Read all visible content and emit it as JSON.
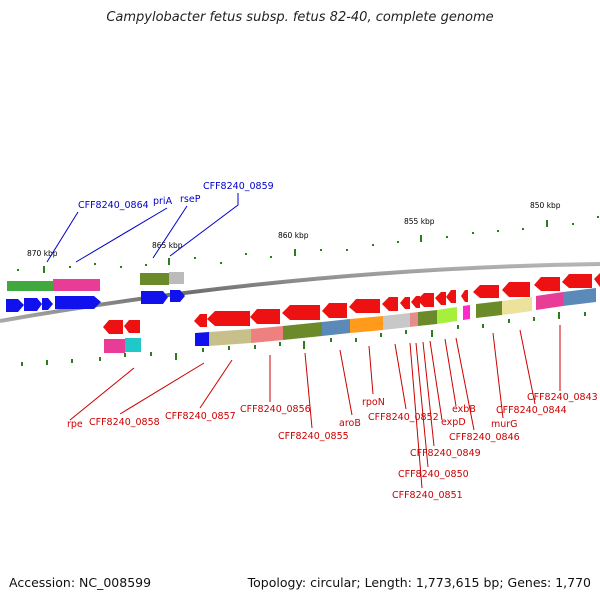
{
  "title": "Campylobacter fetus subsp. fetus 82-40, complete genome",
  "footer": {
    "accession": "Accession: NC_008599",
    "summary": "Topology: circular; Length: 1,773,615 bp; Genes: 1,770"
  },
  "colors": {
    "label_blue": "#0000cc",
    "label_red": "#cc0000",
    "tick_green": "#2d7d1f",
    "backbone": "#7f7f7f"
  },
  "scale_labels": [
    {
      "id": "870",
      "text": "870 kbp"
    },
    {
      "id": "865",
      "text": "865 kbp"
    },
    {
      "id": "860",
      "text": "860 kbp"
    },
    {
      "id": "855",
      "text": "855 kbp"
    },
    {
      "id": "850",
      "text": "850 kbp"
    }
  ],
  "gene_labels_top": [
    {
      "id": "CFF8240_0864",
      "text": "CFF8240_0864"
    },
    {
      "id": "priA",
      "text": "priA"
    },
    {
      "id": "rseP",
      "text": "rseP"
    },
    {
      "id": "CFF8240_0859",
      "text": "CFF8240_0859"
    }
  ],
  "gene_labels_bottom": [
    {
      "id": "rpe",
      "text": "rpe"
    },
    {
      "id": "CFF8240_0858",
      "text": "CFF8240_0858"
    },
    {
      "id": "CFF8240_0857",
      "text": "CFF8240_0857"
    },
    {
      "id": "CFF8240_0856",
      "text": "CFF8240_0856"
    },
    {
      "id": "CFF8240_0855",
      "text": "CFF8240_0855"
    },
    {
      "id": "aroB",
      "text": "aroB"
    },
    {
      "id": "rpoN",
      "text": "rpoN"
    },
    {
      "id": "CFF8240_0852",
      "text": "CFF8240_0852"
    },
    {
      "id": "CFF8240_0851",
      "text": "CFF8240_0851"
    },
    {
      "id": "CFF8240_0850",
      "text": "CFF8240_0850"
    },
    {
      "id": "CFF8240_0849",
      "text": "CFF8240_0849"
    },
    {
      "id": "expD",
      "text": "expD"
    },
    {
      "id": "exbB",
      "text": "exbB"
    },
    {
      "id": "CFF8240_0846",
      "text": "CFF8240_0846"
    },
    {
      "id": "murG",
      "text": "murG"
    },
    {
      "id": "CFF8240_0844",
      "text": "CFF8240_0844"
    },
    {
      "id": "CFF8240_0843",
      "text": "CFF8240_0843"
    }
  ]
}
